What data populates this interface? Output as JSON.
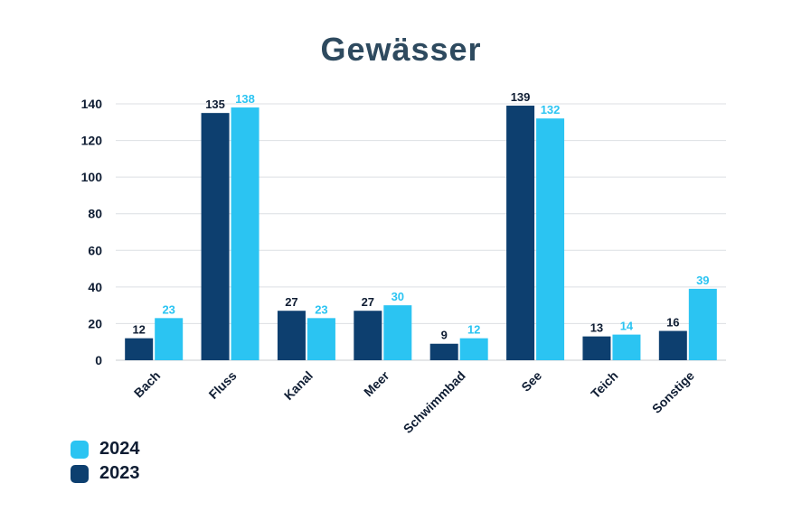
{
  "chart_data": {
    "type": "bar",
    "title": "Gewässer",
    "categories": [
      "Bach",
      "Fluss",
      "Kanal",
      "Meer",
      "Schwimmbad",
      "See",
      "Teich",
      "Sonstige"
    ],
    "series": [
      {
        "name": "2023",
        "color": "#0d3f6f",
        "values": [
          12,
          135,
          27,
          27,
          9,
          139,
          13,
          16
        ]
      },
      {
        "name": "2024",
        "color": "#2bc4f2",
        "values": [
          23,
          138,
          23,
          30,
          12,
          132,
          14,
          39
        ]
      }
    ],
    "ylim": [
      0,
      140
    ],
    "yticks": [
      0,
      20,
      40,
      60,
      80,
      100,
      120,
      140
    ],
    "grid": true,
    "legend_position": "bottom-left",
    "legend": [
      {
        "name": "2024",
        "color": "#2bc4f2"
      },
      {
        "name": "2023",
        "color": "#0d3f6f"
      }
    ],
    "label_colors": {
      "2023": "#0f1d33",
      "2024": "#2bc4f2"
    }
  }
}
